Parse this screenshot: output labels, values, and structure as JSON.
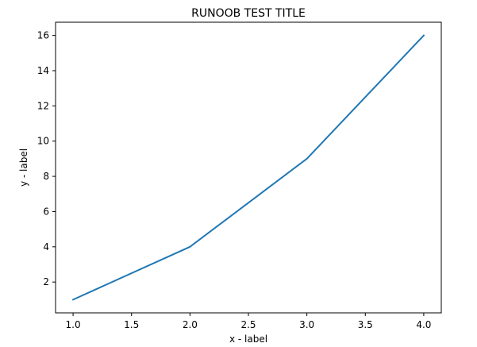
{
  "chart_data": {
    "type": "line",
    "title": "RUNOOB TEST TITLE",
    "xlabel": "x - label",
    "ylabel": "y - label",
    "x": [
      1.0,
      2.0,
      3.0,
      4.0
    ],
    "series": [
      {
        "values": [
          1,
          4,
          9,
          16
        ],
        "color": "#1f77b4"
      }
    ],
    "xlim": [
      0.85,
      4.15
    ],
    "ylim": [
      0.25,
      16.75
    ],
    "xticks": [
      1.0,
      1.5,
      2.0,
      2.5,
      3.0,
      3.5,
      4.0
    ],
    "xtick_labels": [
      "1.0",
      "1.5",
      "2.0",
      "2.5",
      "3.0",
      "3.5",
      "4.0"
    ],
    "yticks": [
      2,
      4,
      6,
      8,
      10,
      12,
      14,
      16
    ],
    "ytick_labels": [
      "2",
      "4",
      "6",
      "8",
      "10",
      "12",
      "14",
      "16"
    ],
    "grid": false,
    "legend": false
  }
}
